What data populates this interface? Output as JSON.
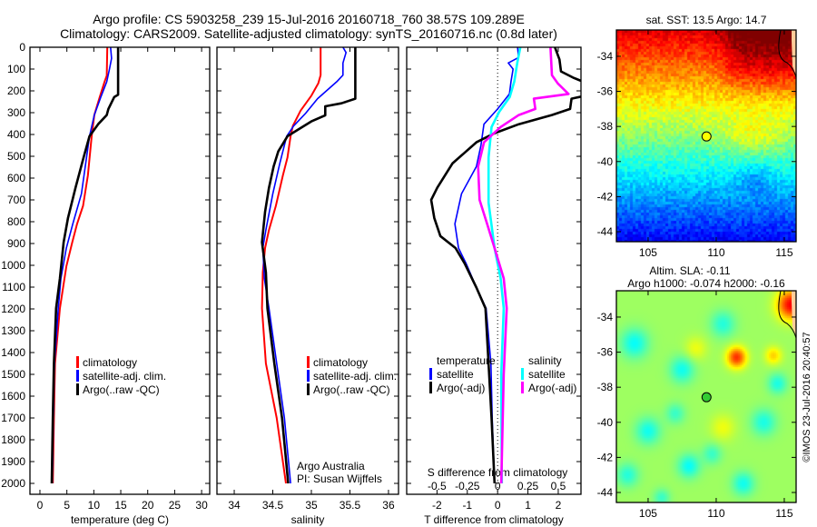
{
  "title": {
    "line1": "Argo profile: CS 5903258_239 15-Jul-2016 20160718_760 38.57S 109.289E",
    "line2": "Climatology: CARS2009. Satellite-adjusted climatology: synTS_20160716.nc (0.8d later)"
  },
  "depth_axis": {
    "ylim": [
      0,
      2050
    ],
    "ticks": [
      "0",
      "100",
      "200",
      "300",
      "400",
      "500",
      "600",
      "700",
      "800",
      "900",
      "1000",
      "1100",
      "1200",
      "1300",
      "1400",
      "1500",
      "1600",
      "1700",
      "1800",
      "1900",
      "2000"
    ]
  },
  "chart_data": [
    {
      "type": "line",
      "id": "temperature",
      "xlabel": "temperature (deg C)",
      "ylabel": "depth",
      "xlim": [
        -1.85,
        31.5
      ],
      "xticks": [
        "0",
        "5",
        "10",
        "15",
        "20",
        "25",
        "30"
      ],
      "legend": {
        "position": "lower-left",
        "entries": [
          "climatology",
          "satellite-adj. clim.",
          "Argo(..raw -QC)"
        ]
      },
      "series": [
        {
          "name": "climatology",
          "color": "#ff0000",
          "points": [
            [
              0,
              12.5
            ],
            [
              130,
              12.4
            ],
            [
              158,
              12.0
            ],
            [
              228,
              11.1
            ],
            [
              311,
              10.1
            ],
            [
              408,
              9.6
            ],
            [
              588,
              8.9
            ],
            [
              727,
              8.0
            ],
            [
              810,
              6.9
            ],
            [
              894,
              6.0
            ],
            [
              1005,
              4.9
            ],
            [
              1102,
              4.3
            ],
            [
              1197,
              3.7
            ],
            [
              1450,
              2.8
            ],
            [
              1700,
              2.6
            ],
            [
              2000,
              2.4
            ]
          ]
        },
        {
          "name": "satellite-adj. clim.",
          "color": "#0000ff",
          "points": [
            [
              0,
              13.1
            ],
            [
              51,
              13.3
            ],
            [
              100,
              12.9
            ],
            [
              158,
              12.4
            ],
            [
              228,
              11.3
            ],
            [
              311,
              10.1
            ],
            [
              408,
              9.2
            ],
            [
              533,
              8.5
            ],
            [
              672,
              7.7
            ],
            [
              810,
              6.1
            ],
            [
              921,
              4.9
            ],
            [
              1060,
              3.9
            ],
            [
              1197,
              3.4
            ],
            [
              1450,
              2.7
            ],
            [
              1700,
              2.5
            ],
            [
              2000,
              2.3
            ]
          ]
        },
        {
          "name": "Argo(..raw -QC)",
          "color": "#000000",
          "points": [
            [
              0,
              14.5
            ],
            [
              218,
              14.5
            ],
            [
              228,
              13.8
            ],
            [
              283,
              12.7
            ],
            [
              311,
              12.4
            ],
            [
              353,
              10.8
            ],
            [
              408,
              9.2
            ],
            [
              505,
              8.1
            ],
            [
              644,
              6.6
            ],
            [
              783,
              5.2
            ],
            [
              894,
              4.4
            ],
            [
              1060,
              3.7
            ],
            [
              1197,
              3.0
            ],
            [
              1450,
              2.6
            ],
            [
              1700,
              2.4
            ],
            [
              2000,
              2.2
            ]
          ]
        }
      ]
    },
    {
      "type": "line",
      "id": "salinity",
      "xlabel": "salinity",
      "xlim": [
        33.776,
        36.13
      ],
      "xticks": [
        "34",
        "34.5",
        "35",
        "35.5",
        "36"
      ],
      "legend": {
        "position": "lower-right",
        "entries": [
          "climatology",
          "satellite-adj. clim.",
          "Argo(..raw -QC)"
        ]
      },
      "annotation": [
        "Argo Australia",
        "PI: Susan Wijffels"
      ],
      "series": [
        {
          "name": "climatology",
          "color": "#ff0000",
          "points": [
            [
              0,
              35.12
            ],
            [
              128,
              35.12
            ],
            [
              166,
              35.09
            ],
            [
              222,
              35.0
            ],
            [
              291,
              34.86
            ],
            [
              361,
              34.76
            ],
            [
              408,
              34.73
            ],
            [
              505,
              34.69
            ],
            [
              588,
              34.63
            ],
            [
              727,
              34.54
            ],
            [
              838,
              34.45
            ],
            [
              921,
              34.4
            ],
            [
              1032,
              34.37
            ],
            [
              1197,
              34.36
            ],
            [
              1450,
              34.41
            ],
            [
              1700,
              34.55
            ],
            [
              2000,
              34.67
            ]
          ]
        },
        {
          "name": "satellite-adj. clim.",
          "color": "#0000ff",
          "points": [
            [
              0,
              35.41
            ],
            [
              24,
              35.45
            ],
            [
              72,
              35.41
            ],
            [
              128,
              35.41
            ],
            [
              158,
              35.33
            ],
            [
              236,
              35.08
            ],
            [
              305,
              34.92
            ],
            [
              361,
              34.77
            ],
            [
              408,
              34.68
            ],
            [
              533,
              34.59
            ],
            [
              672,
              34.5
            ],
            [
              838,
              34.41
            ],
            [
              921,
              34.37
            ],
            [
              1060,
              34.39
            ],
            [
              1197,
              34.45
            ],
            [
              1450,
              34.55
            ],
            [
              1700,
              34.65
            ],
            [
              2000,
              34.73
            ]
          ]
        },
        {
          "name": "Argo(..raw -QC)",
          "color": "#000000",
          "points": [
            [
              0,
              35.57
            ],
            [
              236,
              35.57
            ],
            [
              257,
              35.39
            ],
            [
              271,
              35.18
            ],
            [
              312,
              35.18
            ],
            [
              340,
              35.0
            ],
            [
              375,
              34.84
            ],
            [
              408,
              34.69
            ],
            [
              478,
              34.57
            ],
            [
              547,
              34.51
            ],
            [
              644,
              34.45
            ],
            [
              755,
              34.4
            ],
            [
              894,
              34.36
            ],
            [
              1032,
              34.41
            ],
            [
              1197,
              34.43
            ],
            [
              1450,
              34.52
            ],
            [
              1700,
              34.62
            ],
            [
              2000,
              34.7
            ]
          ]
        }
      ]
    },
    {
      "type": "line",
      "id": "difference",
      "xlabel": "T difference from climatology",
      "xlim": [
        -3,
        2.75
      ],
      "xticks": [
        "-2",
        "-1",
        "0",
        "1",
        "2"
      ],
      "secondary_xlabel": "S difference from climatology",
      "secondary_xlim": [
        -0.75,
        0.6875
      ],
      "secondary_xticks": [
        "-0.5",
        "-0.25",
        "0",
        "0.25",
        "0.5"
      ],
      "zero_line": true,
      "legend": {
        "position": "lower-center",
        "temperature_header": "temperature",
        "salinity_header": "salinity",
        "temperature_entries": [
          "satellite",
          "Argo(-adj)"
        ],
        "salinity_entries": [
          "satellite",
          "Argo(-adj)"
        ]
      },
      "series": [
        {
          "name": "T satellite",
          "axis": "T",
          "color": "#0000ff",
          "points": [
            [
              0,
              0.66
            ],
            [
              47,
              0.69
            ],
            [
              72,
              0.35
            ],
            [
              100,
              0.51
            ],
            [
              158,
              0.44
            ],
            [
              214,
              0.39
            ],
            [
              283,
              0.0
            ],
            [
              353,
              -0.45
            ],
            [
              450,
              -0.55
            ],
            [
              547,
              -0.7
            ],
            [
              672,
              -1.19
            ],
            [
              810,
              -1.41
            ],
            [
              921,
              -1.29
            ],
            [
              991,
              -1.04
            ],
            [
              1102,
              -0.7
            ],
            [
              1197,
              -0.38
            ],
            [
              1450,
              -0.22
            ],
            [
              1700,
              -0.18
            ],
            [
              2000,
              -0.1
            ]
          ]
        },
        {
          "name": "T Argo(-adj)",
          "axis": "T",
          "color": "#000000",
          "points": [
            [
              0,
              1.89
            ],
            [
              56,
              2.04
            ],
            [
              111,
              2.09
            ],
            [
              139,
              2.49
            ],
            [
              167,
              2.98
            ],
            [
              200,
              3.2
            ],
            [
              225,
              2.8
            ],
            [
              236,
              2.44
            ],
            [
              283,
              2.39
            ],
            [
              311,
              1.79
            ],
            [
              353,
              0.7
            ],
            [
              394,
              -0.1
            ],
            [
              436,
              -0.7
            ],
            [
              533,
              -1.49
            ],
            [
              644,
              -1.99
            ],
            [
              700,
              -2.19
            ],
            [
              783,
              -2.09
            ],
            [
              866,
              -1.89
            ],
            [
              921,
              -1.39
            ],
            [
              991,
              -1.09
            ],
            [
              1102,
              -0.7
            ],
            [
              1197,
              -0.4
            ],
            [
              1450,
              -0.3
            ],
            [
              1700,
              -0.2
            ],
            [
              2000,
              -0.1
            ]
          ]
        },
        {
          "name": "S satellite",
          "axis": "S",
          "color": "#00ffff",
          "points": [
            [
              0,
              0.187
            ],
            [
              72,
              0.162
            ],
            [
              158,
              0.137
            ],
            [
              228,
              0.1
            ],
            [
              297,
              0.012
            ],
            [
              366,
              -0.05
            ],
            [
              505,
              -0.075
            ],
            [
              713,
              -0.075
            ],
            [
              921,
              -0.025
            ],
            [
              1060,
              0.025
            ],
            [
              1197,
              0.05
            ],
            [
              1500,
              0.03
            ],
            [
              2000,
              0.035
            ]
          ]
        },
        {
          "name": "S Argo(-adj)",
          "axis": "S",
          "color": "#ff00ff",
          "points": [
            [
              0,
              0.436
            ],
            [
              128,
              0.448
            ],
            [
              167,
              0.498
            ],
            [
              214,
              0.585
            ],
            [
              236,
              0.299
            ],
            [
              283,
              0.311
            ],
            [
              311,
              0.175
            ],
            [
              366,
              0.025
            ],
            [
              436,
              -0.112
            ],
            [
              547,
              -0.161
            ],
            [
              700,
              -0.149
            ],
            [
              810,
              -0.087
            ],
            [
              921,
              -0.025
            ],
            [
              1060,
              0.05
            ],
            [
              1197,
              0.075
            ],
            [
              1500,
              0.05
            ],
            [
              2000,
              0.03
            ]
          ]
        }
      ]
    },
    {
      "type": "heatmap",
      "id": "sst-map",
      "title": "sat. SST: 13.5 Argo: 14.7",
      "field": "SST",
      "xlim": [
        102.67,
        115.87
      ],
      "ylim": [
        -44.57,
        -32.5
      ],
      "xticks": [
        "105",
        "110",
        "115"
      ],
      "yticks": [
        "-34",
        "-36",
        "-38",
        "-40",
        "-42",
        "-44"
      ],
      "marker": {
        "lon": 109.289,
        "lat": -38.57,
        "color": "#ffff00"
      }
    },
    {
      "type": "heatmap",
      "id": "sla-map",
      "title_line1": "Altim. SLA: -0.11",
      "title_line2": "Argo h1000: -0.074 h2000: -0.16",
      "field": "SLA",
      "xlim": [
        102.67,
        115.87
      ],
      "ylim": [
        -44.57,
        -32.5
      ],
      "xticks": [
        "105",
        "110",
        "115"
      ],
      "yticks": [
        "-34",
        "-36",
        "-38",
        "-40",
        "-42",
        "-44"
      ],
      "marker": {
        "lon": 109.289,
        "lat": -38.57,
        "color": "#33cc33"
      }
    }
  ],
  "credit": "©IMOS 23-Jul-2016 20:40:57"
}
